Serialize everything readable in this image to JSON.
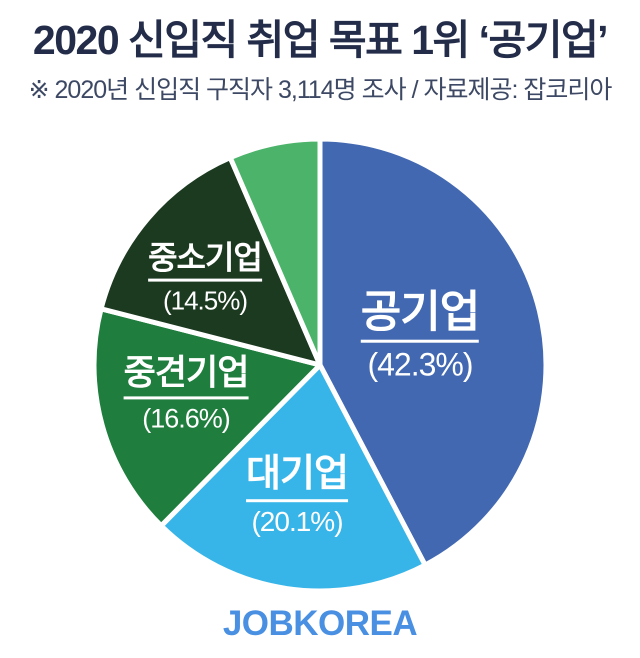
{
  "title": "2020 신입직 취업 목표 1위 ‘공기업’",
  "subtitle": "※ 2020년 신입직 구직자 3,114명 조사 / 자료제공: 잡코리아",
  "logo": "JOBKOREA",
  "colors": {
    "background": "#ffffff",
    "title": "#232d49",
    "subtitle": "#3d4964",
    "logo": "#4a90e2",
    "slice_gap": "#ffffff",
    "label_text": "#ffffff"
  },
  "chart_data": {
    "type": "pie",
    "title": "2020 신입직 취업 목표 1위 ‘공기업’",
    "direction": "clockwise",
    "start_angle_deg": -90,
    "legend_position": "none",
    "series": [
      {
        "key": "public-enterprise",
        "label": "공기업",
        "value": 42.3,
        "pct_label": "(42.3%)",
        "color": "#4268b2"
      },
      {
        "key": "large-enterprise",
        "label": "대기업",
        "value": 20.1,
        "pct_label": "(20.1%)",
        "color": "#38b5e8"
      },
      {
        "key": "midsize-enterprise",
        "label": "중견기업",
        "value": 16.6,
        "pct_label": "(16.6%)",
        "color": "#1f7d3e"
      },
      {
        "key": "small-enterprise",
        "label": "중소기업",
        "value": 14.5,
        "pct_label": "(14.5%)",
        "color": "#1c3a20"
      },
      {
        "key": "unlabeled-remainder",
        "label": "",
        "value": 6.5,
        "pct_label": "",
        "color": "#4bb46a"
      }
    ]
  }
}
